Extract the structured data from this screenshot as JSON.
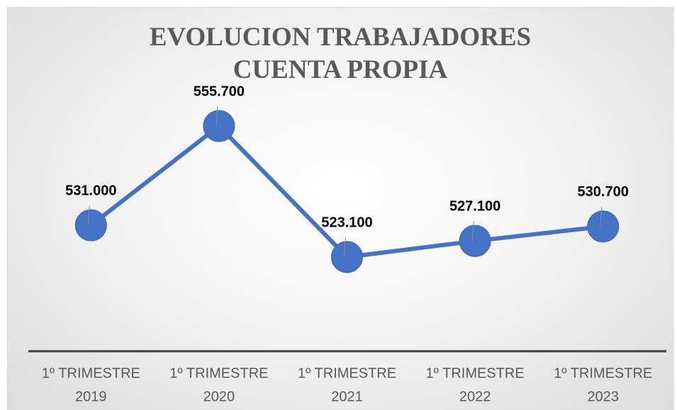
{
  "chart_data": {
    "type": "line",
    "title": "EVOLUCION TRABAJADORES CUENTA PROPIA",
    "categories": [
      [
        "1º TRIMESTRE",
        "2019"
      ],
      [
        "1º TRIMESTRE",
        "2020"
      ],
      [
        "1º TRIMESTRE",
        "2021"
      ],
      [
        "1º TRIMESTRE",
        "2022"
      ],
      [
        "1º TRIMESTRE",
        "2023"
      ]
    ],
    "series": [
      {
        "color": "#4472c4",
        "values": [
          531000,
          555700,
          523100,
          527100,
          530700
        ],
        "value_labels": [
          "531.000",
          "555.700",
          "523.100",
          "527.100",
          "530.700"
        ]
      }
    ]
  }
}
